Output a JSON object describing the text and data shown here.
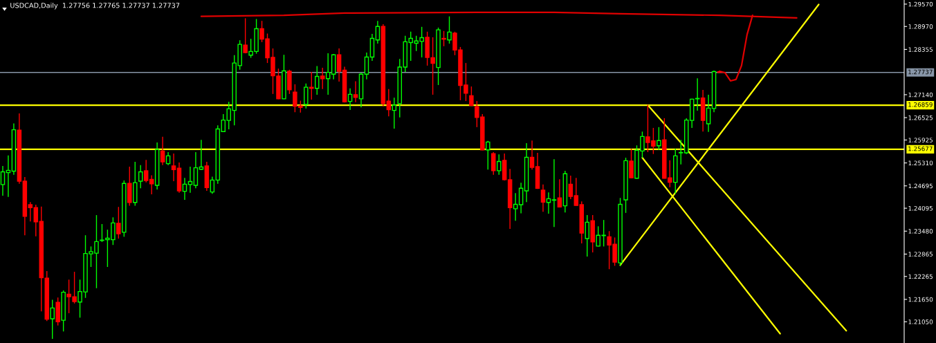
{
  "chart_data": {
    "type": "candlestick",
    "title": "USDCAD,Daily  1.27756 1.27765 1.27737 1.27737",
    "categories": [
      null,
      null,
      null,
      null,
      null,
      null,
      null,
      null,
      null,
      null,
      null,
      null,
      null,
      null,
      null,
      null,
      null,
      null,
      null,
      null,
      null,
      null,
      null,
      null,
      null,
      null,
      null,
      null,
      null,
      null,
      null,
      null,
      null,
      null,
      null,
      null,
      null,
      null,
      null,
      null,
      null,
      null,
      null,
      null,
      null,
      null,
      null,
      null,
      null,
      null,
      null,
      null,
      null,
      null,
      null,
      null,
      null,
      null,
      null,
      null,
      null,
      null,
      null,
      null,
      null,
      null,
      null,
      null,
      null,
      null,
      null,
      null,
      null,
      null,
      null,
      null,
      null,
      null,
      null,
      null,
      null,
      null,
      null,
      null,
      null,
      null,
      null,
      null,
      null,
      null,
      null,
      null,
      null,
      null,
      null,
      null,
      null,
      null,
      null,
      null,
      null,
      null,
      null,
      null,
      null,
      null,
      null,
      null,
      null,
      null,
      null,
      null,
      null,
      null,
      null,
      null,
      null,
      null,
      null,
      null,
      null,
      null,
      null,
      null,
      null,
      null,
      null,
      null,
      null,
      null,
      null,
      null,
      null,
      null,
      null,
      null,
      null,
      null,
      null,
      null,
      null,
      null,
      null,
      null,
      null,
      null,
      null,
      null,
      null,
      null,
      null,
      null,
      null,
      null,
      null,
      null,
      null,
      null,
      null,
      null,
      null,
      null,
      null,
      null
    ],
    "series": [
      {
        "type": "candlestick",
        "ohlc": [
          [
            1.2473,
            1.2523,
            1.2443,
            1.2507
          ],
          [
            1.2505,
            1.2551,
            1.244,
            1.2511
          ],
          [
            1.2509,
            1.2637,
            1.2499,
            1.262
          ],
          [
            1.2619,
            1.2664,
            1.2475,
            1.2482
          ],
          [
            1.2482,
            1.2493,
            1.2337,
            1.2388
          ],
          [
            1.2419,
            1.2426,
            1.2374,
            1.2411
          ],
          [
            1.2411,
            1.2419,
            1.2334,
            1.2373
          ],
          [
            1.2374,
            1.2414,
            1.2133,
            1.2223
          ],
          [
            1.2222,
            1.2241,
            1.2107,
            1.2112
          ],
          [
            1.2113,
            1.2164,
            1.2059,
            1.2142
          ],
          [
            1.2157,
            1.217,
            1.2095,
            1.2105
          ],
          [
            1.2109,
            1.2189,
            1.2079,
            1.2184
          ],
          [
            1.2179,
            1.2218,
            1.2128,
            1.2172
          ],
          [
            1.2172,
            1.2239,
            1.2154,
            1.2159
          ],
          [
            1.2158,
            1.2218,
            1.2116,
            1.2186
          ],
          [
            1.2185,
            1.2337,
            1.2169,
            1.2288
          ],
          [
            1.2287,
            1.2307,
            1.2252,
            1.2293
          ],
          [
            1.2289,
            1.2391,
            1.2195,
            1.232
          ],
          [
            1.2323,
            1.2367,
            1.2319,
            1.2324
          ],
          [
            1.2325,
            1.2352,
            1.2252,
            1.2329
          ],
          [
            1.2325,
            1.2385,
            1.2311,
            1.237
          ],
          [
            1.2369,
            1.2413,
            1.2328,
            1.2341
          ],
          [
            1.2345,
            1.2484,
            1.2333,
            1.2476
          ],
          [
            1.2476,
            1.2521,
            1.2416,
            1.2425
          ],
          [
            1.2425,
            1.2534,
            1.2416,
            1.2478
          ],
          [
            1.2482,
            1.2525,
            1.2463,
            1.2507
          ],
          [
            1.251,
            1.2539,
            1.2479,
            1.2484
          ],
          [
            1.2487,
            1.2498,
            1.2447,
            1.2475
          ],
          [
            1.2471,
            1.2586,
            1.246,
            1.2567
          ],
          [
            1.2563,
            1.2601,
            1.2525,
            1.2534
          ],
          [
            1.2529,
            1.256,
            1.2525,
            1.255
          ],
          [
            1.2523,
            1.2556,
            1.2482,
            1.2513
          ],
          [
            1.2517,
            1.2532,
            1.2451,
            1.2456
          ],
          [
            1.2455,
            1.2491,
            1.2432,
            1.2474
          ],
          [
            1.2473,
            1.2521,
            1.2451,
            1.2481
          ],
          [
            1.2471,
            1.256,
            1.2463,
            1.2518
          ],
          [
            1.2514,
            1.2593,
            1.2512,
            1.252
          ],
          [
            1.2523,
            1.2534,
            1.2456,
            1.2465
          ],
          [
            1.2453,
            1.2494,
            1.2448,
            1.2485
          ],
          [
            1.2485,
            1.2632,
            1.2475,
            1.2622
          ],
          [
            1.2615,
            1.2662,
            1.2614,
            1.2646
          ],
          [
            1.2645,
            1.2695,
            1.2621,
            1.2676
          ],
          [
            1.2672,
            1.282,
            1.2632,
            1.2799
          ],
          [
            1.2792,
            1.286,
            1.2781,
            1.2849
          ],
          [
            1.2847,
            1.2919,
            1.2825,
            1.2827
          ],
          [
            1.282,
            1.2864,
            1.2813,
            1.283
          ],
          [
            1.283,
            1.2917,
            1.2824,
            1.2891
          ],
          [
            1.2891,
            1.2912,
            1.2855,
            1.2863
          ],
          [
            1.2864,
            1.2878,
            1.2799,
            1.2813
          ],
          [
            1.2814,
            1.2838,
            1.2716,
            1.2765
          ],
          [
            1.2764,
            1.2784,
            1.2702,
            1.2703
          ],
          [
            1.2703,
            1.2821,
            1.2702,
            1.2778
          ],
          [
            1.2777,
            1.2781,
            1.2716,
            1.2727
          ],
          [
            1.2721,
            1.2742,
            1.2667,
            1.2683
          ],
          [
            1.2684,
            1.2698,
            1.2666,
            1.268
          ],
          [
            1.2688,
            1.2744,
            1.2677,
            1.2734
          ],
          [
            1.2734,
            1.2775,
            1.2701,
            1.2731
          ],
          [
            1.2731,
            1.2791,
            1.2714,
            1.2763
          ],
          [
            1.2764,
            1.2786,
            1.2729,
            1.2757
          ],
          [
            1.2757,
            1.2825,
            1.2714,
            1.2774
          ],
          [
            1.2769,
            1.2823,
            1.2755,
            1.2821
          ],
          [
            1.2821,
            1.2838,
            1.2749,
            1.2777
          ],
          [
            1.278,
            1.2789,
            1.2693,
            1.2695
          ],
          [
            1.2696,
            1.2731,
            1.2673,
            1.2715
          ],
          [
            1.2714,
            1.275,
            1.2694,
            1.2707
          ],
          [
            1.2703,
            1.2773,
            1.268,
            1.2769
          ],
          [
            1.2769,
            1.2827,
            1.2755,
            1.2815
          ],
          [
            1.2815,
            1.2877,
            1.2805,
            1.2865
          ],
          [
            1.2861,
            1.2912,
            1.2851,
            1.2897
          ],
          [
            1.2897,
            1.2903,
            1.2683,
            1.269
          ],
          [
            1.2697,
            1.2729,
            1.2656,
            1.2674
          ],
          [
            1.2672,
            1.2706,
            1.2623,
            1.2686
          ],
          [
            1.269,
            1.281,
            1.2653,
            1.2788
          ],
          [
            1.2788,
            1.2872,
            1.2775,
            1.2856
          ],
          [
            1.2854,
            1.2883,
            1.2805,
            1.2865
          ],
          [
            1.2852,
            1.2872,
            1.2831,
            1.2858
          ],
          [
            1.2857,
            1.2896,
            1.2814,
            1.2867
          ],
          [
            1.2868,
            1.2883,
            1.2792,
            1.2814
          ],
          [
            1.2813,
            1.2868,
            1.2714,
            1.2798
          ],
          [
            1.2787,
            1.2894,
            1.274,
            1.2888
          ],
          [
            1.2865,
            1.2885,
            1.2844,
            1.2863
          ],
          [
            1.2861,
            1.2924,
            1.2851,
            1.2882
          ],
          [
            1.2879,
            1.2883,
            1.282,
            1.2834
          ],
          [
            1.2834,
            1.2842,
            1.2699,
            1.2739
          ],
          [
            1.274,
            1.2799,
            1.2697,
            1.2718
          ],
          [
            1.2711,
            1.2736,
            1.2684,
            1.2685
          ],
          [
            1.2682,
            1.2697,
            1.2627,
            1.2653
          ],
          [
            1.2654,
            1.2662,
            1.2565,
            1.2566
          ],
          [
            1.2566,
            1.259,
            1.2513,
            1.2587
          ],
          [
            1.2556,
            1.256,
            1.2499,
            1.251
          ],
          [
            1.251,
            1.2554,
            1.2499,
            1.2535
          ],
          [
            1.2538,
            1.2556,
            1.2484,
            1.2486
          ],
          [
            1.2486,
            1.2515,
            1.2354,
            1.2411
          ],
          [
            1.2408,
            1.245,
            1.2376,
            1.242
          ],
          [
            1.2419,
            1.2478,
            1.2396,
            1.2463
          ],
          [
            1.2456,
            1.2584,
            1.2426,
            1.2546
          ],
          [
            1.2546,
            1.2591,
            1.2513,
            1.2519
          ],
          [
            1.2521,
            1.2558,
            1.2461,
            1.2463
          ],
          [
            1.2458,
            1.2473,
            1.24,
            1.2426
          ],
          [
            1.2425,
            1.2452,
            1.2395,
            1.2435
          ],
          [
            1.2431,
            1.2541,
            1.2359,
            1.2432
          ],
          [
            1.2437,
            1.2487,
            1.2412,
            1.2413
          ],
          [
            1.2416,
            1.251,
            1.2398,
            1.2502
          ],
          [
            1.2474,
            1.2497,
            1.2434,
            1.2441
          ],
          [
            1.2443,
            1.2491,
            1.2416,
            1.2417
          ],
          [
            1.2419,
            1.2428,
            1.2315,
            1.2343
          ],
          [
            1.2328,
            1.2391,
            1.228,
            1.2372
          ],
          [
            1.2376,
            1.2391,
            1.2291,
            1.2319
          ],
          [
            1.2308,
            1.2361,
            1.2307,
            1.2337
          ],
          [
            1.2336,
            1.2378,
            1.2307,
            1.2337
          ],
          [
            1.2333,
            1.2348,
            1.2246,
            1.2311
          ],
          [
            1.2313,
            1.2331,
            1.2255,
            1.2265
          ],
          [
            1.2263,
            1.2437,
            1.2254,
            1.242
          ],
          [
            1.2432,
            1.2545,
            1.2397,
            1.2537
          ],
          [
            1.2536,
            1.2569,
            1.249,
            1.2491
          ],
          [
            1.249,
            1.2578,
            1.2489,
            1.2565
          ],
          [
            1.2563,
            1.2615,
            1.2544,
            1.2602
          ],
          [
            1.2601,
            1.2687,
            1.256,
            1.2586
          ],
          [
            1.259,
            1.2625,
            1.2555,
            1.2576
          ],
          [
            1.2577,
            1.2627,
            1.2566,
            1.2591
          ],
          [
            1.2593,
            1.2651,
            1.2489,
            1.249
          ],
          [
            1.2491,
            1.2538,
            1.2466,
            1.2479
          ],
          [
            1.2479,
            1.2569,
            1.2448,
            1.255
          ],
          [
            1.2558,
            1.2593,
            1.2527,
            1.2559
          ],
          [
            1.2558,
            1.2651,
            1.2555,
            1.2646
          ],
          [
            1.2645,
            1.2703,
            1.2625,
            1.2702
          ],
          [
            1.2703,
            1.2758,
            1.2671,
            1.2704
          ],
          [
            1.2705,
            1.2727,
            1.2615,
            1.2645
          ],
          [
            1.2636,
            1.2714,
            1.2614,
            1.2678
          ],
          [
            1.2677,
            1.2779,
            1.2667,
            1.2776
          ],
          [
            1.27756,
            1.27765,
            1.27737,
            1.27737
          ],
          null,
          null,
          null,
          null,
          null,
          null,
          null,
          null,
          null,
          null,
          null,
          null,
          null,
          null,
          null,
          null,
          null,
          null,
          null,
          null,
          null,
          null,
          null,
          null,
          null,
          null,
          null,
          null,
          null,
          null,
          null,
          null,
          null
        ],
        "colors": [
          "#00ff00",
          "#00ff00",
          "#00ff00",
          "#ff0000",
          "#ff0000",
          "#ff0000",
          "#ff0000",
          "#ff0000",
          "#ff0000",
          "#00ff00",
          "#ff0000",
          "#00ff00",
          "#ff0000",
          "#ff0000",
          "#00ff00",
          "#00ff00",
          "#00ff00",
          "#00ff00",
          "#00ff00",
          "#00ff00",
          "#00ff00",
          "#ff0000",
          "#00ff00",
          "#ff0000",
          "#00ff00",
          "#00ff00",
          "#ff0000",
          "#ff0000",
          "#00ff00",
          "#ff0000",
          "#00ff00",
          "#ff0000",
          "#ff0000",
          "#00ff00",
          "#00ff00",
          "#00ff00",
          "#00ff00",
          "#ff0000",
          "#00ff00",
          "#00ff00",
          "#00ff00",
          "#00ff00",
          "#00ff00",
          "#00ff00",
          "#ff0000",
          "#00ff00",
          "#00ff00",
          "#ff0000",
          "#ff0000",
          "#ff0000",
          "#ff0000",
          "#00ff00",
          "#ff0000",
          "#ff0000",
          "#ff0000",
          "#00ff00",
          "#ff0000",
          "#00ff00",
          "#ff0000",
          "#00ff00",
          "#00ff00",
          "#ff0000",
          "#ff0000",
          "#00ff00",
          "#ff0000",
          "#00ff00",
          "#00ff00",
          "#00ff00",
          "#00ff00",
          "#ff0000",
          "#ff0000",
          "#00ff00",
          "#00ff00",
          "#00ff00",
          "#00ff00",
          "#00ff00",
          "#00ff00",
          "#ff0000",
          "#ff0000",
          "#00ff00",
          "#ff0000",
          "#00ff00",
          "#ff0000",
          "#ff0000",
          "#ff0000",
          "#ff0000",
          "#ff0000",
          "#ff0000",
          "#00ff00",
          "#ff0000",
          "#00ff00",
          "#ff0000",
          "#ff0000",
          "#00ff00",
          "#00ff00",
          "#00ff00",
          "#ff0000",
          "#ff0000",
          "#ff0000",
          "#00ff00",
          "#00ff00",
          "#ff0000",
          "#00ff00",
          "#ff0000",
          "#ff0000",
          "#ff0000",
          "#00ff00",
          "#ff0000",
          "#00ff00",
          "#00ff00",
          "#ff0000",
          "#ff0000",
          "#00ff00",
          "#00ff00",
          "#ff0000",
          "#00ff00",
          "#00ff00",
          "#ff0000",
          "#ff0000",
          "#00ff00",
          "#ff0000",
          "#ff0000",
          "#00ff00",
          "#00ff00",
          "#00ff00",
          "#00ff00",
          "#00ff00",
          "#ff0000",
          "#00ff00",
          "#00ff00",
          "#ff0000",
          null,
          null,
          null,
          null,
          null,
          null,
          null,
          null,
          null,
          null,
          null,
          null,
          null,
          null,
          null,
          null,
          null,
          null,
          null,
          null,
          null,
          null,
          null,
          null,
          null,
          null,
          null,
          null,
          null,
          null,
          null,
          null,
          null
        ]
      },
      {
        "type": "line",
        "color": "#ffff00",
        "values": [
          null,
          null,
          null,
          null,
          null,
          null,
          null,
          null,
          null,
          null,
          null,
          null,
          null,
          null,
          null,
          null,
          null,
          null,
          null,
          null,
          null,
          null,
          null,
          null,
          null,
          null,
          null,
          null,
          null,
          null,
          null,
          null,
          null,
          null,
          null,
          null,
          null,
          null,
          null,
          null,
          null,
          null,
          null,
          null,
          null,
          null,
          null,
          null,
          null,
          null,
          null,
          null,
          null,
          null,
          null,
          null,
          null,
          null,
          null,
          null,
          null,
          null,
          null,
          null,
          null,
          null,
          null,
          null,
          null,
          null,
          null,
          null,
          null,
          null,
          null,
          null,
          null,
          null,
          null,
          null,
          null,
          null,
          null,
          null,
          null,
          null,
          null,
          null,
          null,
          null,
          null,
          null,
          null,
          null,
          null,
          null,
          null,
          null,
          null,
          null,
          null,
          null,
          null,
          null,
          null,
          null,
          null,
          null,
          null,
          null,
          null,
          null,
          1.2257,
          null,
          null,
          null,
          null,
          null,
          null,
          null,
          null,
          null,
          null,
          null,
          null,
          null,
          null,
          null,
          null,
          null,
          null,
          null,
          null,
          null,
          null,
          null,
          null,
          null,
          null,
          null,
          null,
          null,
          null,
          null,
          null,
          null,
          null,
          null,
          1.2956,
          null,
          null,
          null,
          null,
          null,
          null,
          null,
          null,
          null,
          null,
          null,
          null,
          null,
          null,
          null
        ]
      },
      {
        "type": "line",
        "color": "#ffff00",
        "values": [
          null,
          null,
          null,
          null,
          null,
          null,
          null,
          null,
          null,
          null,
          null,
          null,
          null,
          null,
          null,
          null,
          null,
          null,
          null,
          null,
          null,
          null,
          null,
          null,
          null,
          null,
          null,
          null,
          null,
          null,
          null,
          null,
          null,
          null,
          null,
          null,
          null,
          null,
          null,
          null,
          null,
          null,
          null,
          null,
          null,
          null,
          null,
          null,
          null,
          null,
          null,
          null,
          null,
          null,
          null,
          null,
          null,
          null,
          null,
          null,
          null,
          null,
          null,
          null,
          null,
          null,
          null,
          null,
          null,
          null,
          null,
          null,
          null,
          null,
          null,
          null,
          null,
          null,
          null,
          null,
          null,
          null,
          null,
          null,
          null,
          null,
          null,
          null,
          null,
          null,
          null,
          null,
          null,
          null,
          null,
          null,
          null,
          null,
          null,
          null,
          null,
          null,
          null,
          null,
          null,
          null,
          null,
          null,
          null,
          null,
          null,
          null,
          null,
          null,
          null,
          null,
          null,
          1.2686,
          null,
          null,
          null,
          null,
          null,
          null,
          null,
          null,
          null,
          null,
          null,
          null,
          null,
          null,
          null,
          null,
          null,
          null,
          null,
          null,
          null,
          null,
          null,
          null,
          null,
          null,
          null,
          null,
          null,
          null,
          null,
          null,
          null,
          null,
          null,
          1.2081,
          null,
          null,
          null,
          null,
          null,
          null,
          null,
          null,
          null,
          null
        ]
      },
      {
        "type": "line",
        "color": "#ffff00",
        "values": [
          null,
          null,
          null,
          null,
          null,
          null,
          null,
          null,
          null,
          null,
          null,
          null,
          null,
          null,
          null,
          null,
          null,
          null,
          null,
          null,
          null,
          null,
          null,
          null,
          null,
          null,
          null,
          null,
          null,
          null,
          null,
          null,
          null,
          null,
          null,
          null,
          null,
          null,
          null,
          null,
          null,
          null,
          null,
          null,
          null,
          null,
          null,
          null,
          null,
          null,
          null,
          null,
          null,
          null,
          null,
          null,
          null,
          null,
          null,
          null,
          null,
          null,
          null,
          null,
          null,
          null,
          null,
          null,
          null,
          null,
          null,
          null,
          null,
          null,
          null,
          null,
          null,
          null,
          null,
          null,
          null,
          null,
          null,
          null,
          null,
          null,
          null,
          null,
          null,
          null,
          null,
          null,
          null,
          null,
          null,
          null,
          null,
          null,
          null,
          null,
          null,
          null,
          null,
          null,
          null,
          null,
          null,
          null,
          null,
          null,
          null,
          null,
          null,
          null,
          null,
          null,
          1.2545,
          null,
          null,
          null,
          null,
          null,
          null,
          null,
          null,
          null,
          null,
          null,
          null,
          null,
          null,
          null,
          null,
          null,
          null,
          null,
          null,
          null,
          null,
          null,
          null,
          1.2073,
          null,
          null,
          null,
          null,
          null,
          null,
          null,
          null,
          null,
          null,
          null,
          null,
          null,
          null,
          null,
          null,
          null,
          null,
          null,
          null,
          null,
          null
        ]
      },
      {
        "type": "line",
        "color": "#e00000",
        "values": [
          null,
          null,
          null,
          null,
          null,
          null,
          null,
          null,
          null,
          null,
          null,
          null,
          null,
          null,
          null,
          null,
          null,
          null,
          null,
          null,
          null,
          null,
          null,
          null,
          null,
          null,
          null,
          null,
          null,
          null,
          null,
          null,
          null,
          null,
          null,
          null,
          1.2924,
          null,
          null,
          null,
          null,
          null,
          null,
          null,
          null,
          null,
          null,
          null,
          null,
          null,
          null,
          1.2927,
          null,
          null,
          null,
          null,
          null,
          null,
          null,
          null,
          null,
          null,
          1.2933,
          null,
          null,
          null,
          null,
          null,
          null,
          null,
          null,
          null,
          null,
          null,
          null,
          null,
          null,
          null,
          null,
          null,
          null,
          null,
          null,
          null,
          null,
          null,
          1.2935,
          null,
          null,
          null,
          null,
          null,
          null,
          null,
          null,
          null,
          null,
          null,
          null,
          null,
          1.2935,
          null,
          null,
          null,
          null,
          null,
          null,
          null,
          null,
          null,
          null,
          null,
          1.2931,
          null,
          null,
          null,
          null,
          null,
          null,
          null,
          null,
          null,
          null,
          null,
          null,
          null,
          null,
          null,
          null,
          null,
          1.2927,
          null,
          null,
          null,
          null,
          null,
          null,
          null,
          null,
          null,
          null,
          null,
          null,
          null,
          1.292,
          null,
          null,
          null,
          null,
          null,
          null,
          null,
          null,
          null,
          null,
          null,
          null,
          null,
          null,
          null,
          null,
          null,
          null,
          null
        ]
      },
      {
        "type": "line",
        "color": "#e00000",
        "values": [
          null,
          null,
          null,
          null,
          null,
          null,
          null,
          null,
          null,
          null,
          null,
          null,
          null,
          null,
          null,
          null,
          null,
          null,
          null,
          null,
          null,
          null,
          null,
          null,
          null,
          null,
          null,
          null,
          null,
          null,
          null,
          null,
          null,
          null,
          null,
          null,
          null,
          null,
          null,
          null,
          null,
          null,
          null,
          null,
          null,
          null,
          null,
          null,
          null,
          null,
          null,
          null,
          null,
          null,
          null,
          null,
          null,
          null,
          null,
          null,
          null,
          null,
          null,
          null,
          null,
          null,
          null,
          null,
          null,
          null,
          null,
          null,
          null,
          null,
          null,
          null,
          null,
          null,
          null,
          null,
          null,
          null,
          null,
          null,
          null,
          null,
          null,
          null,
          null,
          null,
          null,
          null,
          null,
          null,
          null,
          null,
          null,
          null,
          null,
          null,
          null,
          null,
          null,
          null,
          null,
          null,
          null,
          null,
          null,
          null,
          null,
          null,
          null,
          null,
          null,
          null,
          null,
          null,
          null,
          null,
          null,
          null,
          null,
          null,
          null,
          null,
          null,
          null,
          null,
          null,
          1.2777,
          1.2773,
          1.2751,
          1.2755,
          1.2792,
          1.2875,
          1.2927,
          null,
          null,
          null,
          null,
          null,
          null,
          null,
          null,
          null,
          null,
          null,
          null,
          null,
          null,
          null,
          null,
          null,
          null,
          null,
          null,
          null,
          null,
          null,
          null,
          null,
          null,
          null
        ]
      }
    ],
    "ylim": [
      1.2048,
      1.2968
    ],
    "yticks": [
      {
        "value": 1.2957,
        "label": "1.29570"
      },
      {
        "value": 1.2897,
        "label": "1.28970"
      },
      {
        "value": 1.28355,
        "label": "1.28355"
      },
      {
        "value": 1.2714,
        "label": "1.27140"
      },
      {
        "value": 1.26525,
        "label": "1.26525"
      },
      {
        "value": 1.25925,
        "label": "1.25925"
      },
      {
        "value": 1.2531,
        "label": "1.25310"
      },
      {
        "value": 1.24695,
        "label": "1.24695"
      },
      {
        "value": 1.24095,
        "label": "1.24095"
      },
      {
        "value": 1.2348,
        "label": "1.23480"
      },
      {
        "value": 1.22865,
        "label": "1.22865"
      },
      {
        "value": 1.22265,
        "label": "1.22265"
      },
      {
        "value": 1.2165,
        "label": "1.21650"
      },
      {
        "value": 1.2105,
        "label": "1.21050"
      }
    ],
    "ref_lines": [
      {
        "axis": "y",
        "value": 1.27737,
        "label": "1.27737",
        "color": "#8896a8"
      },
      {
        "axis": "y",
        "value": 1.26859,
        "label": "1.26859",
        "color": "#ffff00"
      },
      {
        "axis": "y",
        "value": 1.25677,
        "label": "1.25677",
        "color": "#ffff00"
      }
    ],
    "tick_labels": "y"
  }
}
